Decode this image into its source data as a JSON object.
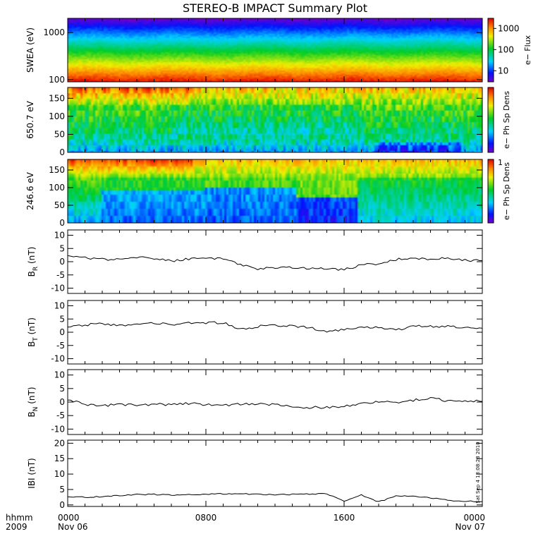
{
  "chart_data": {
    "title": "STEREO-B IMPACT Summary Plot",
    "type": "line",
    "x_axis": {
      "time_label": "hhmm",
      "year_label": "2009",
      "ticks": [
        "0000",
        "0800",
        "1600",
        "0000"
      ],
      "date_labels": [
        "Nov 06",
        "Nov 07"
      ],
      "range_hours": [
        0,
        24
      ]
    },
    "footnote": "Sat Sep  4 13:08:28 2010",
    "panels": [
      {
        "id": "swea",
        "type": "heatmap",
        "ylabel": "SWEA (eV)",
        "yscale": "log",
        "ylim": [
          90,
          2000
        ],
        "yticks": [
          "1000",
          "100"
        ],
        "colorbar": {
          "label": "e− Flux",
          "scale": "log",
          "range": [
            3,
            3000
          ],
          "ticks": [
            "1000",
            "100",
            "10"
          ]
        }
      },
      {
        "id": "pad650",
        "type": "heatmap",
        "ylabel": "650.7 eV",
        "ylim": [
          0,
          180
        ],
        "yticks": [
          "150",
          "100",
          "50",
          "0"
        ],
        "colorbar": {
          "label": "e− Ph Sp Dens",
          "ticks": []
        }
      },
      {
        "id": "pad246",
        "type": "heatmap",
        "ylabel": "246.6 eV",
        "ylim": [
          0,
          180
        ],
        "yticks": [
          "150",
          "100",
          "50",
          "0"
        ],
        "colorbar": {
          "label": "e− Ph Sp Dens",
          "ticks": [
            "1"
          ]
        }
      },
      {
        "id": "br",
        "type": "line",
        "ylabel_main": "B",
        "ylabel_sub": "R",
        "ylabel_unit": "(nT)",
        "ylim": [
          -12,
          12
        ],
        "yticks": [
          "10",
          "5",
          "0",
          "-5",
          "-10"
        ],
        "x": [
          0,
          1,
          2,
          3,
          4,
          5,
          6,
          7,
          8,
          9,
          10,
          11,
          12,
          13,
          14,
          15,
          16,
          17,
          18,
          19,
          20,
          21,
          22,
          23,
          24
        ],
        "values": [
          2.5,
          1.6,
          0.9,
          1.0,
          1.7,
          1.2,
          0.3,
          1.0,
          1.3,
          1.0,
          -1.0,
          -2.6,
          -2.4,
          -2.2,
          -2.6,
          -2.7,
          -3.0,
          -1.2,
          -0.8,
          0.8,
          1.3,
          1.1,
          1.5,
          0.6,
          0.4
        ]
      },
      {
        "id": "bt",
        "type": "line",
        "ylabel_main": "B",
        "ylabel_sub": "T",
        "ylabel_unit": "(nT)",
        "ylim": [
          -12,
          12
        ],
        "yticks": [
          "10",
          "5",
          "0",
          "-5",
          "-10"
        ],
        "x": [
          0,
          1,
          2,
          3,
          4,
          5,
          6,
          7,
          8,
          9,
          10,
          11,
          12,
          13,
          14,
          15,
          16,
          17,
          18,
          19,
          20,
          21,
          22,
          23,
          24
        ],
        "values": [
          2.0,
          2.8,
          3.2,
          2.6,
          3.0,
          3.3,
          3.0,
          3.4,
          3.5,
          3.6,
          1.0,
          2.2,
          2.6,
          2.4,
          1.8,
          0.2,
          1.2,
          1.6,
          1.8,
          0.7,
          2.5,
          2.3,
          2.2,
          1.5,
          1.5
        ]
      },
      {
        "id": "bn",
        "type": "line",
        "ylabel_main": "B",
        "ylabel_sub": "N",
        "ylabel_unit": "(nT)",
        "ylim": [
          -12,
          12
        ],
        "yticks": [
          "10",
          "5",
          "0",
          "-5",
          "-10"
        ],
        "x": [
          0,
          1,
          2,
          3,
          4,
          5,
          6,
          7,
          8,
          9,
          10,
          11,
          12,
          13,
          14,
          15,
          16,
          17,
          18,
          19,
          20,
          21,
          22,
          23,
          24
        ],
        "values": [
          1.0,
          -1.0,
          -1.2,
          -1.0,
          -1.1,
          -0.8,
          -0.9,
          -0.5,
          -0.9,
          -1.2,
          -0.8,
          -0.6,
          -1.0,
          -1.8,
          -2.0,
          -1.9,
          -1.7,
          -0.6,
          0.2,
          -0.2,
          0.6,
          1.6,
          0.3,
          0.5,
          0.2
        ]
      },
      {
        "id": "bmag",
        "type": "line",
        "ylabel_main": "IBI",
        "ylabel_sub": "",
        "ylabel_unit": "(nT)",
        "ylim": [
          -0.5,
          21
        ],
        "yticks": [
          "20",
          "15",
          "10",
          "5",
          "0"
        ],
        "x": [
          0,
          1,
          2,
          3,
          4,
          5,
          6,
          7,
          8,
          9,
          10,
          11,
          12,
          13,
          14,
          15,
          16,
          17,
          18,
          19,
          20,
          21,
          22,
          23,
          24
        ],
        "values": [
          2.7,
          2.5,
          2.7,
          3.0,
          3.4,
          3.4,
          3.2,
          3.3,
          3.5,
          3.6,
          3.6,
          3.4,
          3.3,
          3.4,
          3.5,
          3.6,
          1.3,
          3.2,
          1.0,
          2.8,
          2.8,
          2.3,
          1.5,
          1.2,
          1.1
        ]
      }
    ]
  }
}
